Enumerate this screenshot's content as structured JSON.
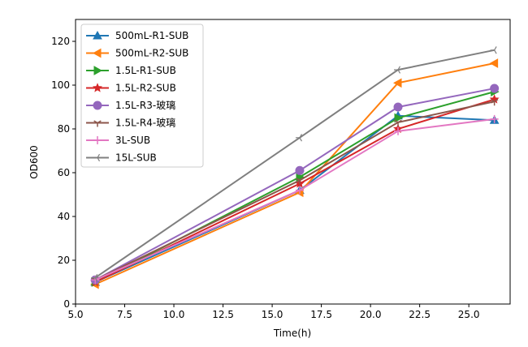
{
  "chart_data": {
    "type": "line",
    "title": "",
    "xlabel": "Time(h)",
    "ylabel": "OD600",
    "xlim": [
      5.0,
      27.1
    ],
    "ylim": [
      0,
      130
    ],
    "xticks": [
      "5.0",
      "7.5",
      "10.0",
      "12.5",
      "15.0",
      "17.5",
      "20.0",
      "22.5",
      "25.0"
    ],
    "xtick_values": [
      5,
      7.5,
      10,
      12.5,
      15,
      17.5,
      20,
      22.5,
      25
    ],
    "yticks": [
      "0",
      "20",
      "40",
      "60",
      "80",
      "100",
      "120"
    ],
    "ytick_values": [
      0,
      20,
      40,
      60,
      80,
      100,
      120
    ],
    "x": [
      6.0,
      16.4,
      21.4,
      26.3
    ],
    "legend_position": "top-left",
    "grid": false,
    "series": [
      {
        "name": "500mL-R1-SUB",
        "color": "#1f77b4",
        "marker": "triangle-up",
        "values": [
          10,
          52,
          86,
          84
        ]
      },
      {
        "name": "500mL-R2-SUB",
        "color": "#ff7f0e",
        "marker": "triangle-left",
        "values": [
          9,
          51,
          101,
          110
        ]
      },
      {
        "name": "1.5L-R1-SUB",
        "color": "#2ca02c",
        "marker": "triangle-right",
        "values": [
          10,
          58,
          85,
          97
        ]
      },
      {
        "name": "1.5L-R2-SUB",
        "color": "#d62728",
        "marker": "star",
        "values": [
          10,
          55,
          80,
          93.5
        ]
      },
      {
        "name": "1.5L-R3-玻璃",
        "color": "#9467bd",
        "marker": "circle",
        "values": [
          11,
          61,
          90,
          98.5
        ]
      },
      {
        "name": "1.5L-R4-玻璃",
        "color": "#8c564b",
        "marker": "tri-down",
        "values": [
          11,
          56.5,
          83,
          92.5
        ]
      },
      {
        "name": "3L-SUB",
        "color": "#e377c2",
        "marker": "plus",
        "values": [
          11,
          52,
          79,
          84.5
        ]
      },
      {
        "name": "15L-SUB",
        "color": "#7f7f7f",
        "marker": "tri-left",
        "values": [
          12,
          76,
          107,
          116
        ]
      }
    ]
  }
}
